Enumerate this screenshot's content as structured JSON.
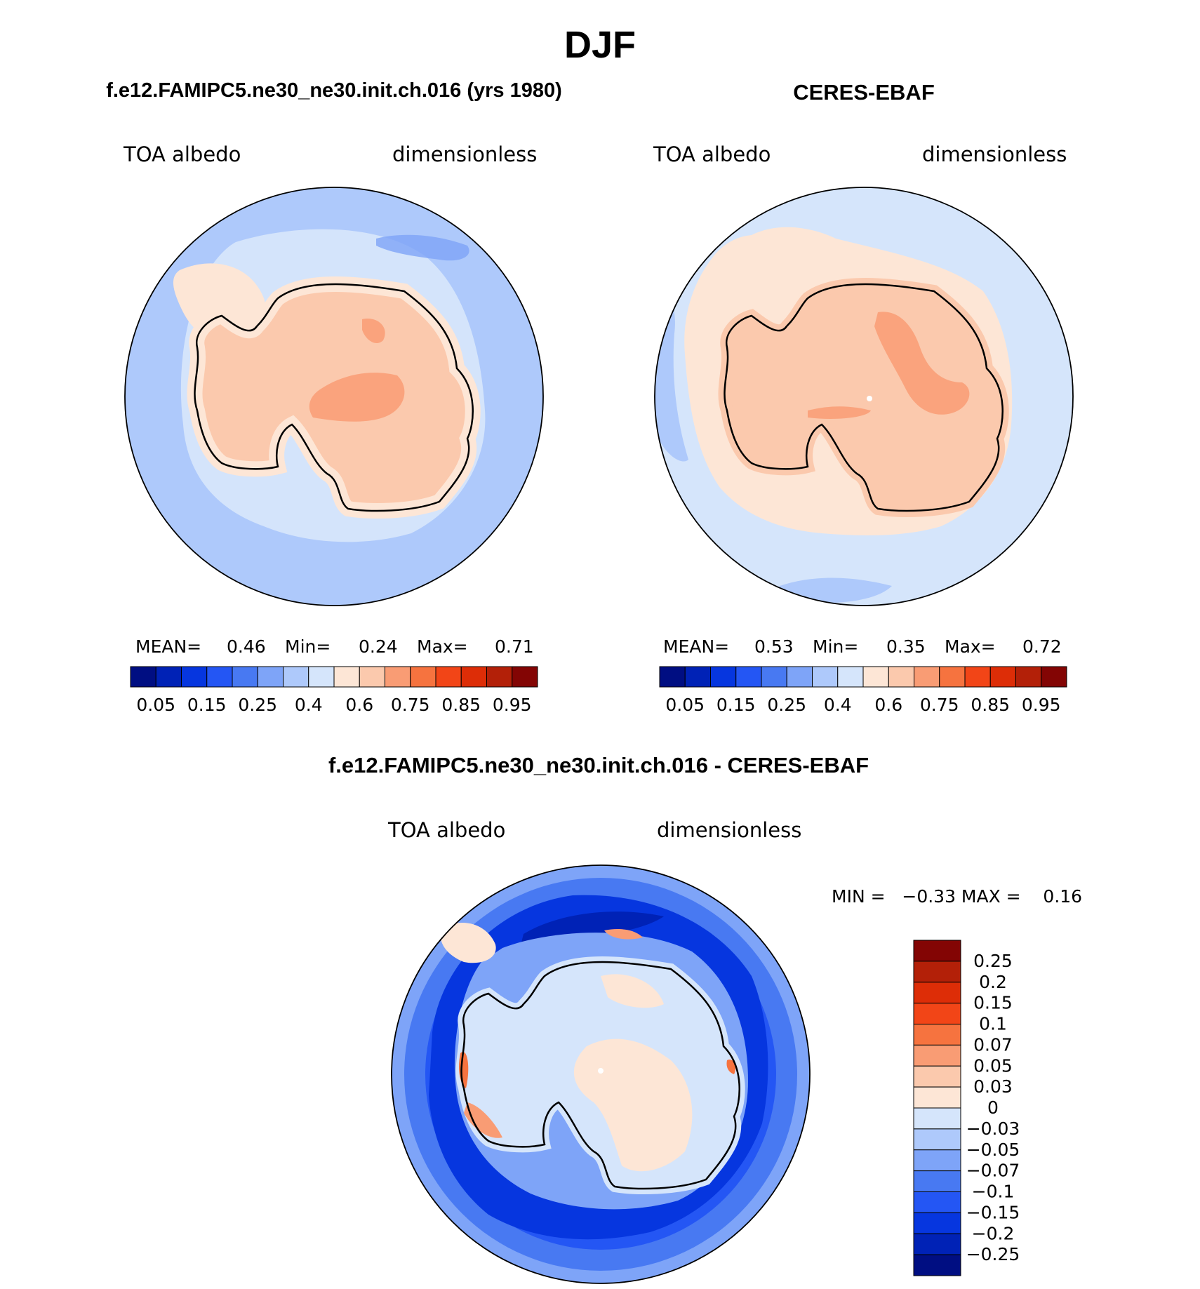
{
  "title": "DJF",
  "panels": [
    {
      "id": "model",
      "case_title": "f.e12.FAMIPC5.ne30_ne30.init.ch.016 (yrs 1980)",
      "variable": "TOA albedo",
      "units": "dimensionless",
      "stats": {
        "mean_label": "MEAN=",
        "mean": "0.46",
        "min_label": "Min=",
        "min": "0.24",
        "max_label": "Max=",
        "max": "0.71"
      },
      "ocean_color": "#aec9fb",
      "inner_ocean_color": "#d4e4fb",
      "land_color": "#fbc9ad"
    },
    {
      "id": "obs",
      "case_title": "CERES-EBAF",
      "variable": "TOA albedo",
      "units": "dimensionless",
      "stats": {
        "mean_label": "MEAN=",
        "mean": "0.53",
        "min_label": "Min=",
        "min": "0.35",
        "max_label": "Max=",
        "max": "0.72"
      },
      "ocean_color": "#d5e5fb",
      "inner_ocean_color": "#fde6d6",
      "land_color": "#fbc9ad"
    }
  ],
  "colorbar": {
    "colors": [
      "#000e82",
      "#0022b6",
      "#0636df",
      "#2456f4",
      "#4879f2",
      "#7ea4f8",
      "#aec9fb",
      "#d5e5fb",
      "#fde6d6",
      "#fbc9ad",
      "#f99c74",
      "#f6733f",
      "#f24517",
      "#dd2d07",
      "#b32008",
      "#830504"
    ],
    "tick_labels": [
      "0.05",
      "0.15",
      "0.25",
      "0.4",
      "0.6",
      "0.75",
      "0.85",
      "0.95"
    ]
  },
  "diff_panel": {
    "case_title": "f.e12.FAMIPC5.ne30_ne30.init.ch.016 - CERES-EBAF",
    "variable": "TOA albedo",
    "units": "dimensionless",
    "stats": "MIN =   −0.33 MAX =    0.16",
    "ocean_outer_color": "#2456f4",
    "ocean_mid_color": "#0636df",
    "ocean_far_color": "#7ea4f8",
    "land_color": "#d5e5fb",
    "colorbar": {
      "colors": [
        "#830504",
        "#b32008",
        "#dd2d07",
        "#f24517",
        "#f6733f",
        "#f99c74",
        "#fbc9ad",
        "#fde6d6",
        "#d5e5fb",
        "#aec9fb",
        "#7ea4f8",
        "#4879f2",
        "#2456f4",
        "#0636df",
        "#0022b6",
        "#000e82"
      ],
      "tick_labels": [
        "0.25",
        "0.2",
        "0.15",
        "0.1",
        "0.07",
        "0.05",
        "0.03",
        "0",
        "−0.03",
        "−0.05",
        "−0.07",
        "−0.1",
        "−0.15",
        "−0.2",
        "−0.25"
      ]
    }
  }
}
